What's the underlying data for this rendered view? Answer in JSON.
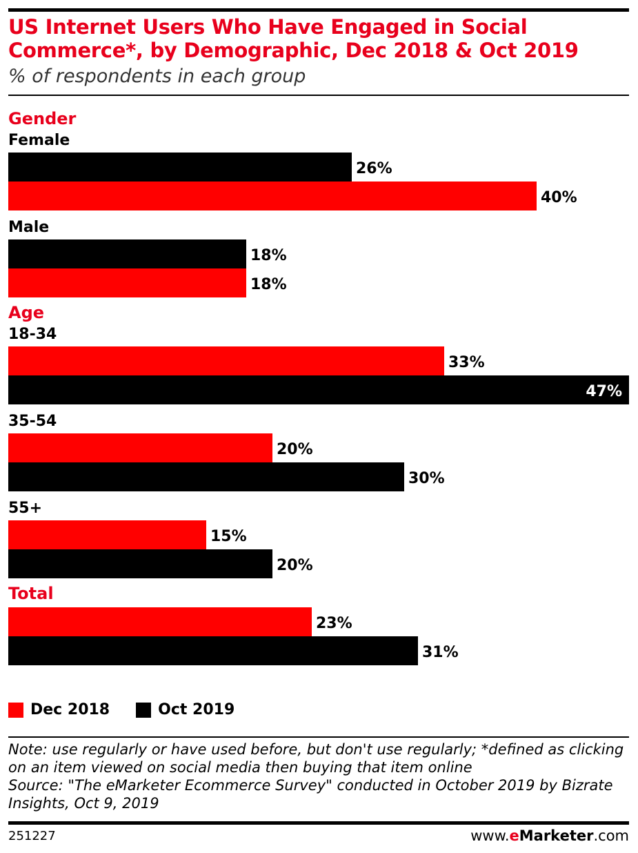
{
  "chart_data": {
    "type": "bar",
    "orientation": "horizontal",
    "title": "US Internet Users Who Have Engaged in Social Commerce*, by Demographic, Dec 2018 & Oct 2019",
    "subtitle": "% of respondents in each group",
    "value_suffix": "%",
    "xlim": [
      0,
      47
    ],
    "series_colors": {
      "Dec 2018": "#ff0000",
      "Oct 2019": "#000000"
    },
    "groups": [
      {
        "heading": "Gender",
        "categories": [
          {
            "label": "Female",
            "bars": [
              {
                "series": "Oct 2019",
                "value": 26
              },
              {
                "series": "Dec 2018",
                "value": 40
              }
            ]
          },
          {
            "label": "Male",
            "bars": [
              {
                "series": "Oct 2019",
                "value": 18
              },
              {
                "series": "Dec 2018",
                "value": 18
              }
            ]
          }
        ]
      },
      {
        "heading": "Age",
        "categories": [
          {
            "label": "18-34",
            "bars": [
              {
                "series": "Dec 2018",
                "value": 33
              },
              {
                "series": "Oct 2019",
                "value": 47
              }
            ]
          },
          {
            "label": "35-54",
            "bars": [
              {
                "series": "Dec 2018",
                "value": 20
              },
              {
                "series": "Oct 2019",
                "value": 30
              }
            ]
          },
          {
            "label": "55+",
            "bars": [
              {
                "series": "Dec 2018",
                "value": 15
              },
              {
                "series": "Oct 2019",
                "value": 20
              }
            ]
          }
        ]
      },
      {
        "heading": "Total",
        "categories": [
          {
            "label": "",
            "bars": [
              {
                "series": "Dec 2018",
                "value": 23
              },
              {
                "series": "Oct 2019",
                "value": 31
              }
            ]
          }
        ]
      }
    ],
    "legend": [
      {
        "label": "Dec 2018",
        "color": "#ff0000"
      },
      {
        "label": "Oct 2019",
        "color": "#000000"
      }
    ]
  },
  "note": "Note: use regularly or have used before, but don't use regularly; *defined as clicking on an item viewed on social media then buying that item online",
  "source": "Source: \"The eMarketer Ecommerce Survey\" conducted in October 2019 by Bizrate Insights, Oct 9, 2019",
  "footer": {
    "chart_id": "251227",
    "brand_prefix": "www.",
    "brand_e": "e",
    "brand_name": "Marketer",
    "brand_suffix": ".com"
  }
}
